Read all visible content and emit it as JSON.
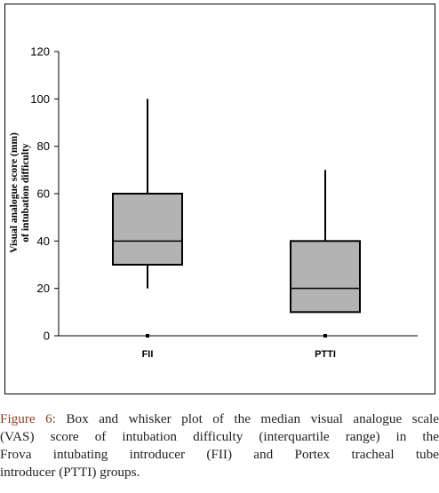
{
  "chart_data": {
    "type": "box",
    "title": "",
    "ylabel_lines": [
      "Visual analogue score (mm)",
      "of intubation difficulty"
    ],
    "xlabel": "",
    "ylim": [
      0,
      120
    ],
    "yticks": [
      0,
      20,
      40,
      60,
      80,
      100,
      120
    ],
    "categories": [
      "FII",
      "PTTI"
    ],
    "boxes": [
      {
        "name": "FII",
        "min": 20,
        "q1": 30,
        "median": 40,
        "q3": 60,
        "max": 100
      },
      {
        "name": "PTTI",
        "min": 10,
        "q1": 10,
        "median": 20,
        "q3": 40,
        "max": 70
      }
    ],
    "box_color": "#b3b3b3",
    "grid": false,
    "legend": "none"
  },
  "caption": {
    "label": "Figure 6:",
    "lines": [
      " Box and whisker plot of the median visual analogue scale",
      "(VAS) score of intubation difficulty (interquartile range) in the",
      "Frova intubating introducer (FII) and Portex tracheal tube",
      "introducer (PTTI) groups."
    ]
  }
}
